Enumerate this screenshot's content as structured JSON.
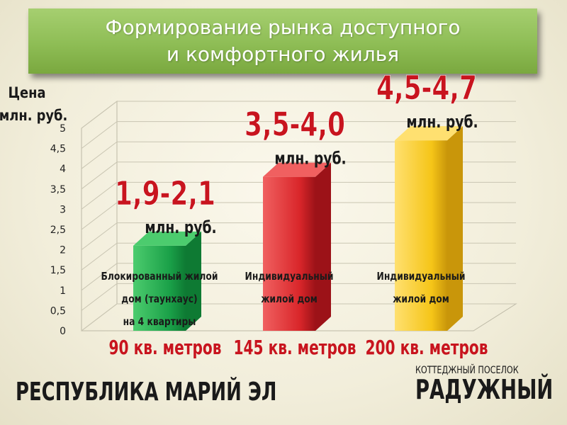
{
  "header": {
    "title_line1": "Формирование рынка доступного",
    "title_line2": "и комфортного жилья"
  },
  "footer": {
    "region": "РЕСПУБЛИКА МАРИЙ ЭЛ",
    "settlement_caption": "КОТТЕДЖНЫЙ ПОСЕЛОК",
    "settlement_name": "РАДУЖНЫЙ"
  },
  "chart_data": {
    "type": "bar",
    "ylabel": [
      "Цена",
      "млн. руб."
    ],
    "ylim": [
      0,
      5
    ],
    "yticks": [
      "0",
      "0,5",
      "1",
      "1,5",
      "2",
      "2,5",
      "3",
      "3,5",
      "4",
      "4,5",
      "5"
    ],
    "bars": [
      {
        "value": 2.1,
        "price_label": "1,9-2,1",
        "unit_label": "млн. руб.",
        "desc": [
          "Блокированный жилой",
          "дом (таунхаус)",
          "на 4 квартиры"
        ],
        "area_label": "90 кв. метров",
        "color": "#1aa048",
        "color_light": "#4ccc6e",
        "color_dark": "#0e7a33"
      },
      {
        "value": 3.8,
        "price_label": "3,5-4,0",
        "unit_label": "млн. руб.",
        "desc": [
          "Индивидуальный",
          "жилой дом"
        ],
        "area_label": "145 кв. метров",
        "color": "#d9262a",
        "color_light": "#f06060",
        "color_dark": "#9c1218"
      },
      {
        "value": 4.7,
        "price_label": "4,5-4,7",
        "unit_label": "млн. руб.",
        "desc": [
          "Индивидуальный",
          "жилой дом"
        ],
        "area_label": "200 кв. метров",
        "color": "#f5c518",
        "color_light": "#ffe070",
        "color_dark": "#c9960a"
      }
    ],
    "grid": true,
    "label_color": "#c8141e"
  }
}
